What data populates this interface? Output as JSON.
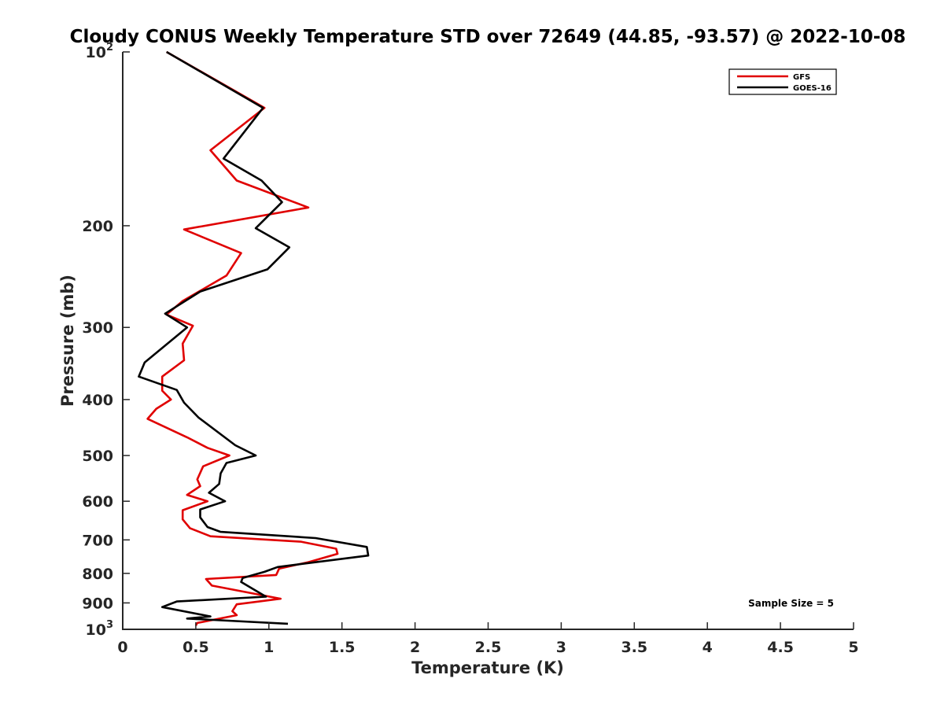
{
  "chart_data": {
    "type": "line",
    "title": "Cloudy CONUS Weekly Temperature STD over 72649 (44.85, -93.57) @ 2022-10-08",
    "xlabel": "Temperature (K)",
    "ylabel": "Pressure (mb)",
    "xlim": [
      0,
      5
    ],
    "ylim": [
      100,
      1000
    ],
    "y_scale": "log",
    "y_reversed": true,
    "x_ticks": [
      "0",
      "0.5",
      "1",
      "1.5",
      "2",
      "2.5",
      "3",
      "3.5",
      "4",
      "4.5",
      "5"
    ],
    "y_ticks": [
      {
        "value": 100,
        "base": "10",
        "exp": "2"
      },
      {
        "value": 200,
        "label": "200"
      },
      {
        "value": 300,
        "label": "300"
      },
      {
        "value": 400,
        "label": "400"
      },
      {
        "value": 500,
        "label": "500"
      },
      {
        "value": 600,
        "label": "600"
      },
      {
        "value": 700,
        "label": "700"
      },
      {
        "value": 800,
        "label": "800"
      },
      {
        "value": 900,
        "label": "900"
      },
      {
        "value": 1000,
        "base": "10",
        "exp": "3"
      }
    ],
    "grid": false,
    "legend_position": "top-right",
    "annotation": "Sample Size = 5",
    "series": [
      {
        "name": "GFS",
        "color": "#e00000",
        "points": [
          [
            0.3,
            100
          ],
          [
            0.97,
            125
          ],
          [
            0.6,
            148
          ],
          [
            0.78,
            167
          ],
          [
            1.27,
            186
          ],
          [
            0.42,
            203
          ],
          [
            0.81,
            223
          ],
          [
            0.71,
            244
          ],
          [
            0.41,
            270
          ],
          [
            0.3,
            285
          ],
          [
            0.48,
            298
          ],
          [
            0.41,
            320
          ],
          [
            0.42,
            342
          ],
          [
            0.27,
            365
          ],
          [
            0.27,
            386
          ],
          [
            0.33,
            400
          ],
          [
            0.23,
            415
          ],
          [
            0.17,
            432
          ],
          [
            0.44,
            465
          ],
          [
            0.58,
            485
          ],
          [
            0.73,
            500
          ],
          [
            0.55,
            522
          ],
          [
            0.51,
            550
          ],
          [
            0.53,
            565
          ],
          [
            0.44,
            585
          ],
          [
            0.58,
            600
          ],
          [
            0.41,
            622
          ],
          [
            0.41,
            645
          ],
          [
            0.46,
            668
          ],
          [
            0.6,
            690
          ],
          [
            1.22,
            705
          ],
          [
            1.46,
            725
          ],
          [
            1.47,
            740
          ],
          [
            1.27,
            765
          ],
          [
            1.07,
            785
          ],
          [
            1.05,
            805
          ],
          [
            0.57,
            818
          ],
          [
            0.61,
            840
          ],
          [
            1.08,
            885
          ],
          [
            0.78,
            905
          ],
          [
            0.75,
            930
          ],
          [
            0.78,
            945
          ],
          [
            0.51,
            975
          ],
          [
            0.5,
            985
          ]
        ]
      },
      {
        "name": "GOES-16",
        "color": "#000000",
        "points": [
          [
            0.3,
            100
          ],
          [
            0.96,
            125
          ],
          [
            0.69,
            153
          ],
          [
            0.95,
            167
          ],
          [
            1.09,
            182
          ],
          [
            0.91,
            202
          ],
          [
            1.14,
            218
          ],
          [
            0.99,
            238
          ],
          [
            0.53,
            260
          ],
          [
            0.29,
            284
          ],
          [
            0.44,
            300
          ],
          [
            0.15,
            345
          ],
          [
            0.11,
            365
          ],
          [
            0.37,
            385
          ],
          [
            0.42,
            405
          ],
          [
            0.52,
            430
          ],
          [
            0.77,
            480
          ],
          [
            0.91,
            500
          ],
          [
            0.71,
            515
          ],
          [
            0.67,
            537
          ],
          [
            0.66,
            560
          ],
          [
            0.59,
            580
          ],
          [
            0.7,
            600
          ],
          [
            0.53,
            620
          ],
          [
            0.53,
            640
          ],
          [
            0.58,
            665
          ],
          [
            0.67,
            678
          ],
          [
            1.32,
            695
          ],
          [
            1.67,
            720
          ],
          [
            1.68,
            745
          ],
          [
            1.06,
            780
          ],
          [
            0.97,
            795
          ],
          [
            0.82,
            815
          ],
          [
            0.81,
            828
          ],
          [
            0.98,
            878
          ],
          [
            0.37,
            895
          ],
          [
            0.27,
            915
          ],
          [
            0.6,
            950
          ],
          [
            0.44,
            958
          ],
          [
            1.13,
            978
          ]
        ]
      }
    ]
  }
}
